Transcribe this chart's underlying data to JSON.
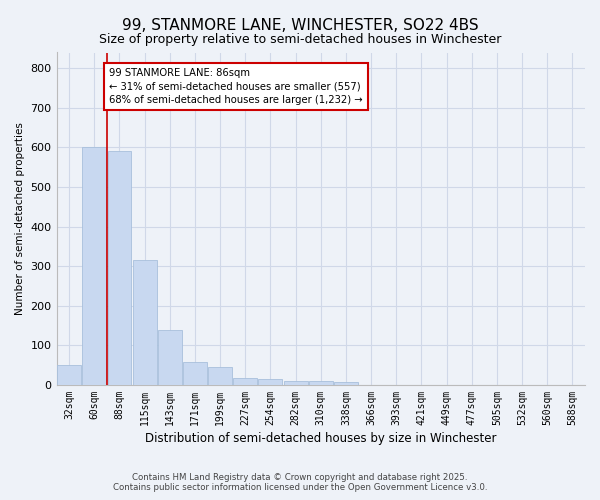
{
  "title": "99, STANMORE LANE, WINCHESTER, SO22 4BS",
  "subtitle": "Size of property relative to semi-detached houses in Winchester",
  "xlabel": "Distribution of semi-detached houses by size in Winchester",
  "ylabel": "Number of semi-detached properties",
  "categories": [
    "32sqm",
    "60sqm",
    "88sqm",
    "115sqm",
    "143sqm",
    "171sqm",
    "199sqm",
    "227sqm",
    "254sqm",
    "282sqm",
    "310sqm",
    "338sqm",
    "366sqm",
    "393sqm",
    "421sqm",
    "449sqm",
    "477sqm",
    "505sqm",
    "532sqm",
    "560sqm",
    "588sqm"
  ],
  "values": [
    50,
    600,
    590,
    315,
    140,
    57,
    45,
    18,
    15,
    10,
    10,
    8,
    0,
    0,
    0,
    0,
    0,
    0,
    0,
    0,
    0
  ],
  "bar_color": "#c8d8f0",
  "bar_edge_color": "#a8c0dc",
  "grid_color": "#d0d8e8",
  "bg_color": "#eef2f8",
  "vline_color": "#cc0000",
  "vline_pos": 1.5,
  "annotation_text": "99 STANMORE LANE: 86sqm\n← 31% of semi-detached houses are smaller (557)\n68% of semi-detached houses are larger (1,232) →",
  "annotation_box_color": "#cc0000",
  "footnote": "Contains HM Land Registry data © Crown copyright and database right 2025.\nContains public sector information licensed under the Open Government Licence v3.0.",
  "ylim": [
    0,
    840
  ],
  "yticks": [
    0,
    100,
    200,
    300,
    400,
    500,
    600,
    700,
    800
  ]
}
